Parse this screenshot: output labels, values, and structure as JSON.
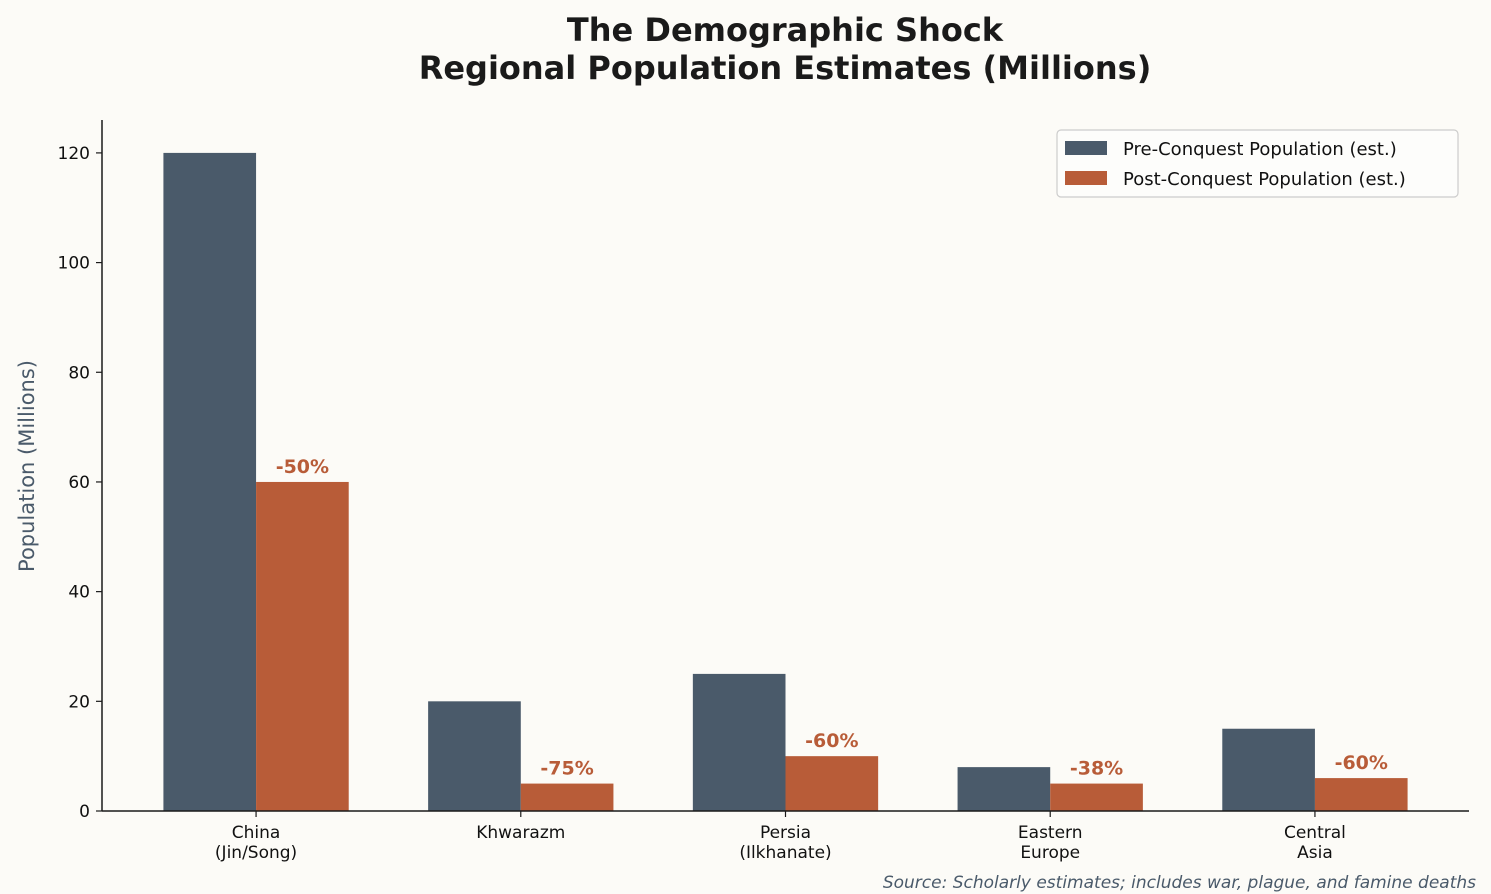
{
  "chart_data": {
    "type": "bar",
    "title": "The Demographic Shock",
    "subtitle": "Regional Population Estimates (Millions)",
    "xlabel": "",
    "ylabel": "Population (Millions)",
    "categories": [
      "China\n(Jin/Song)",
      "Khwarazm",
      "Persia\n(Ilkhanate)",
      "Eastern\nEurope",
      "Central\nAsia"
    ],
    "series": [
      {
        "name": "Pre-Conquest Population (est.)",
        "color": "#4a5a6a",
        "values": [
          120,
          20,
          25,
          8,
          15
        ]
      },
      {
        "name": "Post-Conquest Population (est.)",
        "color": "#b85c38",
        "values": [
          60,
          5,
          10,
          5,
          6
        ]
      }
    ],
    "data_labels": [
      "-50%",
      "-75%",
      "-60%",
      "-38%",
      "-60%"
    ],
    "ylim": [
      0,
      126
    ],
    "yticks": [
      0,
      20,
      40,
      60,
      80,
      100,
      120
    ],
    "grid": false,
    "legend_position": "top-right",
    "annotation": "Source: Scholarly estimates; includes war, plague, and famine deaths",
    "colors": {
      "background": "#fcfbf7",
      "title": "#1a1a1a",
      "ylabel": "#4a5a6a",
      "label": "#b85c38",
      "note": "#4a5a6a"
    }
  }
}
